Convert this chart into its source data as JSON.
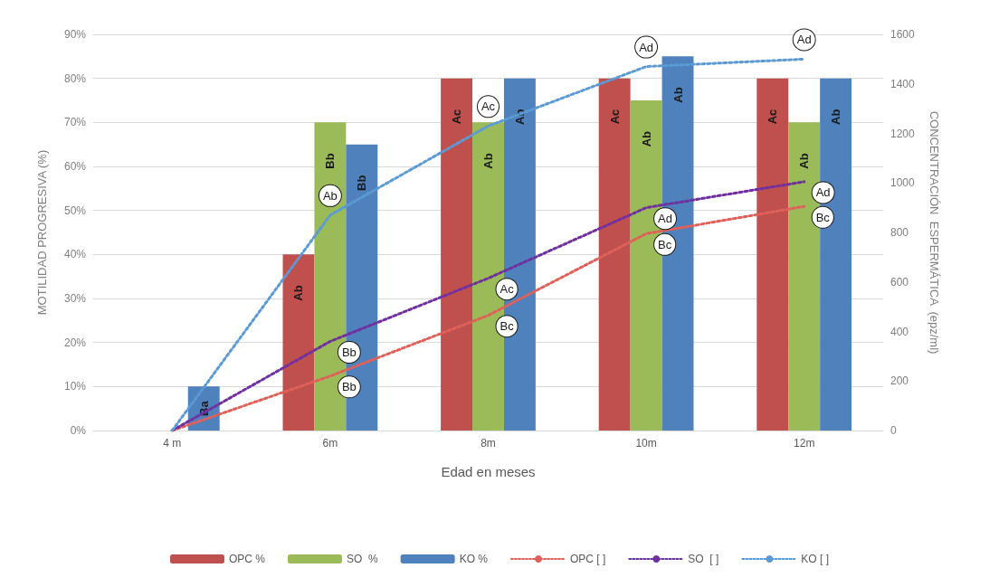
{
  "chart_data": {
    "type": "bar",
    "xlabel": "Edad en meses",
    "ylabel": "MOTILIDAD PROGRESIVA (%)",
    "y2label": "CONCENTRACIÓN  ESPERMÁTICA  (epz/ml)",
    "categories": [
      "4 m",
      "6m",
      "8m",
      "10m",
      "12m"
    ],
    "series": [
      {
        "name": "OPC %",
        "color": "#c0504d",
        "values": [
          null,
          40,
          80,
          80,
          80
        ],
        "value_labels": [
          null,
          "Ab",
          "Ac",
          "Ac",
          "Ac"
        ]
      },
      {
        "name": "SO  %",
        "color": "#9bbb59",
        "values": [
          null,
          70,
          70,
          75,
          70
        ],
        "value_labels": [
          null,
          "Bb",
          "Ab",
          "Ab",
          "Ab"
        ]
      },
      {
        "name": "KO %",
        "color": "#4f81bd",
        "values": [
          10,
          65,
          80,
          85,
          80
        ],
        "value_labels": [
          "Ba",
          "Bb",
          "Ab",
          "Ab",
          "Ab"
        ]
      },
      {
        "name": "OPC [ ]",
        "type": "line",
        "axis": "y2",
        "color": "#e0605a",
        "values": [
          0,
          220,
          465,
          795,
          905
        ],
        "value_labels": [
          null,
          "Bb",
          "Bc",
          "Bc",
          "Bc"
        ]
      },
      {
        "name": "SO  [ ]",
        "type": "line",
        "axis": "y2",
        "color": "#7030a0",
        "values": [
          0,
          360,
          615,
          900,
          1005
        ],
        "value_labels": [
          null,
          "Bb",
          "Ac",
          "Ad",
          "Ad"
        ]
      },
      {
        "name": "KO [ ]",
        "type": "line",
        "axis": "y2",
        "color": "#5b9bd5",
        "values": [
          0,
          870,
          1230,
          1470,
          1500
        ],
        "value_labels": [
          null,
          "Ab",
          "Ac",
          "Ad",
          "Ad"
        ]
      }
    ],
    "ylim": [
      0,
      90
    ],
    "yticks": [
      {
        "value": 0,
        "label": "0%"
      },
      {
        "value": 10,
        "label": "10%"
      },
      {
        "value": 20,
        "label": "20%"
      },
      {
        "value": 30,
        "label": "30%"
      },
      {
        "value": 40,
        "label": "40%"
      },
      {
        "value": 50,
        "label": "50%"
      },
      {
        "value": 60,
        "label": "60%"
      },
      {
        "value": 70,
        "label": "70%"
      },
      {
        "value": 80,
        "label": "80%"
      },
      {
        "value": 90,
        "label": "90%"
      }
    ],
    "y2lim": [
      0,
      1600
    ],
    "y2ticks": [
      0,
      200,
      400,
      600,
      800,
      1000,
      1200,
      1400,
      1600
    ],
    "grid": "y",
    "legend": "bottom",
    "marker": "none",
    "line_style": "dotted"
  }
}
